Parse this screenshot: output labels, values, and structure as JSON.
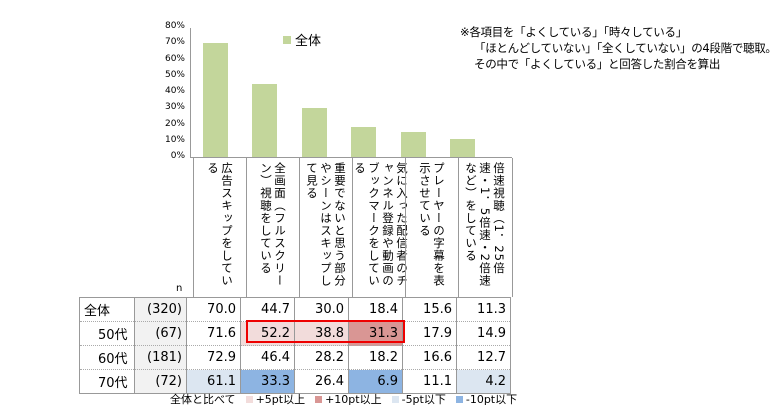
{
  "chart_data": {
    "type": "bar",
    "legend": "全体",
    "ylim": [
      0,
      80
    ],
    "yticks": [
      "0%",
      "10%",
      "20%",
      "30%",
      "40%",
      "50%",
      "60%",
      "70%",
      "80%"
    ],
    "categories": [
      "広告スキップをしている",
      "全画面（フルスクリーン）視聴をしている",
      "重要でないと思う部分やシーンはスキップして見る",
      "気に入った配信者のチャンネル登録や動画のブックマークをしている",
      "プレーヤーの字幕を表示させている",
      "倍速視聴（1．25倍速・1．5倍速・2倍速など）をしている"
    ],
    "values": [
      70.0,
      44.7,
      30.0,
      18.4,
      15.6,
      11.3
    ],
    "color": "#c3d69b"
  },
  "note": [
    "※各項目を「よくしている」「時々している」",
    "「ほとんどしていない」「全くしていない」の4段階で聴取。",
    "その中で「よくしている」と回答した割合を算出"
  ],
  "table": {
    "n_header": "n",
    "rows": [
      {
        "label": "全体",
        "n": "(320)",
        "values": [
          "70.0",
          "44.7",
          "30.0",
          "18.4",
          "15.6",
          "11.3"
        ],
        "hl": [
          "",
          "",
          "",
          "",
          "",
          ""
        ]
      },
      {
        "label": "50代",
        "n": "(67)",
        "values": [
          "71.6",
          "52.2",
          "38.8",
          "31.3",
          "17.9",
          "14.9"
        ],
        "hl": [
          "",
          "p5",
          "p5",
          "p10",
          "",
          ""
        ]
      },
      {
        "label": "60代",
        "n": "(181)",
        "values": [
          "72.9",
          "46.4",
          "28.2",
          "18.2",
          "16.6",
          "12.7"
        ],
        "hl": [
          "",
          "",
          "",
          "",
          "",
          ""
        ]
      },
      {
        "label": "70代",
        "n": "(72)",
        "values": [
          "61.1",
          "33.3",
          "26.4",
          "6.9",
          "11.1",
          "4.2"
        ],
        "hl": [
          "m5",
          "m10",
          "",
          "m10",
          "",
          "m5"
        ]
      }
    ]
  },
  "legend": {
    "title": "全体と比べて",
    "items": [
      {
        "label": "+5pt以上",
        "color": "#f2dcdb"
      },
      {
        "label": "+10pt以上",
        "color": "#d99694"
      },
      {
        "label": "-5pt以下",
        "color": "#dce6f1"
      },
      {
        "label": "-10pt以下",
        "color": "#8db4e2"
      }
    ]
  }
}
